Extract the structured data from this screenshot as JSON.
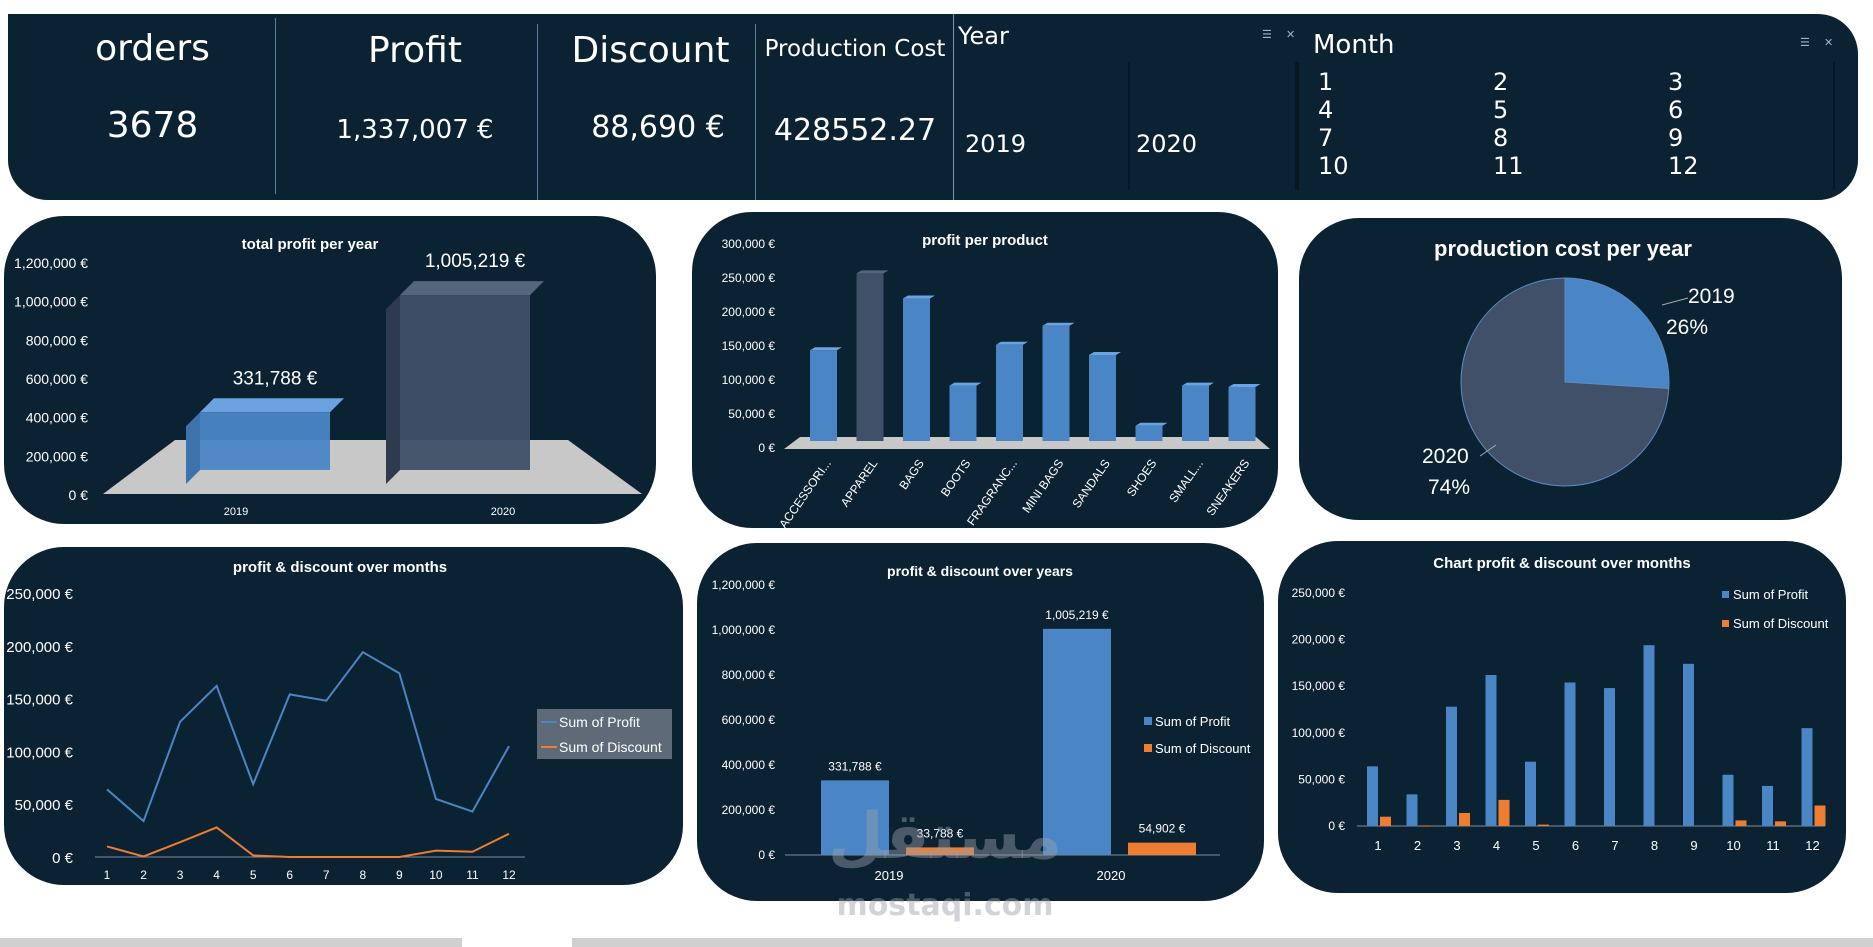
{
  "kpis": [
    {
      "label": "orders",
      "value": "3678"
    },
    {
      "label": "Profit",
      "value": "1,337,007 €"
    },
    {
      "label": "Discount",
      "value": "88,690 €"
    },
    {
      "label": "Production Cost",
      "value": "428552.27"
    }
  ],
  "year_slicer": {
    "title": "Year",
    "items": [
      "2019",
      "2020"
    ]
  },
  "month_slicer": {
    "title": "Month",
    "items": [
      "1",
      "2",
      "3",
      "4",
      "5",
      "6",
      "7",
      "8",
      "9",
      "10",
      "11",
      "12"
    ]
  },
  "watermark": {
    "arabic": "مستقل",
    "latin": "mostaqi.com"
  },
  "charts": {
    "c1": {
      "title": "total profit per year"
    },
    "c2": {
      "title": "profit per product"
    },
    "c3": {
      "title": "production cost per year"
    },
    "c4": {
      "title": "profit & discount over months"
    },
    "c5": {
      "title": "profit & discount over years"
    },
    "c6": {
      "title": "Chart  profit & discount over months"
    }
  },
  "colors": {
    "panel": "#0b2233",
    "profit": "#4a86c6",
    "discount": "#ed7d31",
    "dark_bar": "#3f5068"
  },
  "chart_data": [
    {
      "id": "total-profit-per-year",
      "type": "bar",
      "title": "total profit per year",
      "categories": [
        "2019",
        "2020"
      ],
      "values": [
        331788,
        1005219
      ],
      "data_labels": [
        "331,788 €",
        "1,005,219 €"
      ],
      "ylim": [
        0,
        1200000
      ],
      "yticks": [
        "0 €",
        "200,000 €",
        "400,000 €",
        "600,000 €",
        "800,000 €",
        "1,000,000 €",
        "1,200,000 €"
      ]
    },
    {
      "id": "profit-per-product",
      "type": "bar",
      "title": "profit per product",
      "categories": [
        "ACCESSORI...",
        "APPAREL",
        "BAGS",
        "BOOTS",
        "FRAGRANC...",
        "MINI BAGS",
        "SANDALS",
        "SHOES",
        "SMALL...",
        "SNEAKERS"
      ],
      "values": [
        132000,
        245000,
        208000,
        80000,
        140000,
        168000,
        125000,
        21000,
        80000,
        78000
      ],
      "ylim": [
        0,
        300000
      ],
      "yticks": [
        "0 €",
        "50,000 €",
        "100,000 €",
        "150,000 €",
        "200,000 €",
        "250,000 €",
        "300,000 €"
      ]
    },
    {
      "id": "production-cost-per-year",
      "type": "pie",
      "title": "production cost per year",
      "labels": [
        "2019",
        "2020"
      ],
      "values": [
        26,
        74
      ],
      "pct_labels": [
        "26%",
        "74%"
      ]
    },
    {
      "id": "profit-discount-over-months-line",
      "type": "line",
      "title": "profit & discount over months",
      "categories": [
        "1",
        "2",
        "3",
        "4",
        "5",
        "6",
        "7",
        "8",
        "9",
        "10",
        "11",
        "12"
      ],
      "series": [
        {
          "name": "Sum of Profit",
          "values": [
            64000,
            34000,
            128000,
            162000,
            69000,
            154000,
            148000,
            194000,
            174000,
            55000,
            43000,
            105000
          ]
        },
        {
          "name": "Sum of Discount",
          "values": [
            10000,
            500,
            14000,
            28000,
            1500,
            0,
            0,
            0,
            0,
            6000,
            5000,
            22000
          ]
        }
      ],
      "ylim": [
        0,
        250000
      ],
      "yticks": [
        "0 €",
        "50,000 €",
        "100,000 €",
        "150,000 €",
        "200,000 €",
        "250,000 €"
      ],
      "legend": "right"
    },
    {
      "id": "profit-discount-over-years",
      "type": "bar",
      "title": "profit & discount over years",
      "categories": [
        "2019",
        "2020"
      ],
      "series": [
        {
          "name": "Sum of Profit",
          "values": [
            331788,
            1005219
          ],
          "labels": [
            "331,788 €",
            "1,005,219 €"
          ]
        },
        {
          "name": "Sum of Discount",
          "values": [
            33788,
            54902
          ],
          "labels": [
            "33,788 €",
            "54,902 €"
          ]
        }
      ],
      "ylim": [
        0,
        1200000
      ],
      "yticks": [
        "0 €",
        "200,000 €",
        "400,000 €",
        "600,000 €",
        "800,000 €",
        "1,000,000 €",
        "1,200,000 €"
      ],
      "legend": "right"
    },
    {
      "id": "profit-discount-over-months-bar",
      "type": "bar",
      "title": "Chart  profit & discount over months",
      "categories": [
        "1",
        "2",
        "3",
        "4",
        "5",
        "6",
        "7",
        "8",
        "9",
        "10",
        "11",
        "12"
      ],
      "series": [
        {
          "name": "Sum of Profit",
          "values": [
            64000,
            34000,
            128000,
            162000,
            69000,
            154000,
            148000,
            194000,
            174000,
            55000,
            43000,
            105000
          ]
        },
        {
          "name": "Sum of Discount",
          "values": [
            10000,
            500,
            14000,
            28000,
            1500,
            0,
            0,
            0,
            0,
            6000,
            5000,
            22000
          ]
        }
      ],
      "ylim": [
        0,
        250000
      ],
      "yticks": [
        "0 €",
        "50,000 €",
        "100,000 €",
        "150,000 €",
        "200,000 €",
        "250,000 €"
      ],
      "legend": "top-right"
    }
  ]
}
